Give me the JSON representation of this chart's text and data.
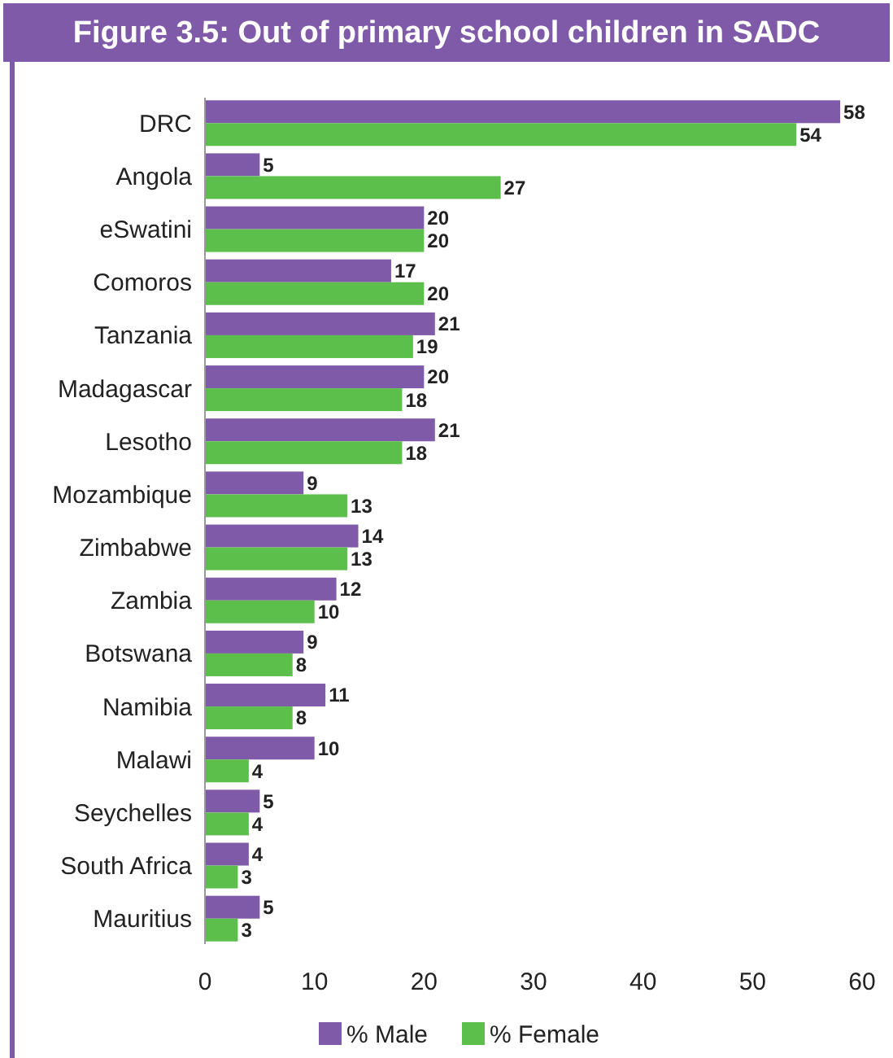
{
  "chart_data": {
    "type": "bar",
    "orientation": "horizontal",
    "title": "Figure 3.5: Out of primary school children in SADC",
    "categories": [
      "DRC",
      "Angola",
      "eSwatini",
      "Comoros",
      "Tanzania",
      "Madagascar",
      "Lesotho",
      "Mozambique",
      "Zimbabwe",
      "Zambia",
      "Botswana",
      "Namibia",
      "Malawi",
      "Seychelles",
      "South Africa",
      "Mauritius"
    ],
    "series": [
      {
        "name": "% Male",
        "color": "#7f5aa8",
        "values": [
          58,
          5,
          20,
          17,
          21,
          20,
          21,
          9,
          14,
          12,
          9,
          11,
          10,
          5,
          4,
          5
        ]
      },
      {
        "name": "% Female",
        "color": "#5cbf4b",
        "values": [
          54,
          27,
          20,
          20,
          19,
          18,
          18,
          13,
          13,
          10,
          8,
          8,
          4,
          4,
          3,
          3
        ]
      }
    ],
    "xlim": [
      0,
      60
    ],
    "xticks": [
      0,
      10,
      20,
      30,
      40,
      50,
      60
    ],
    "data_labels": true,
    "legend": "bottom",
    "grid": false
  }
}
